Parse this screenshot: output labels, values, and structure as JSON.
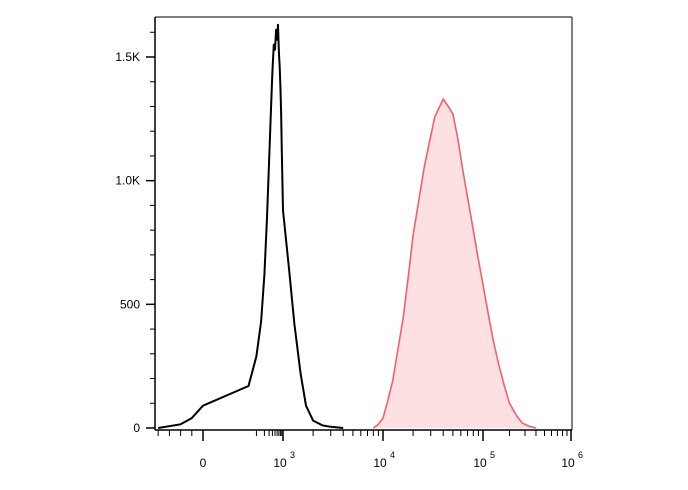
{
  "chart_data": {
    "type": "histogram",
    "title": "",
    "xlabel": "",
    "ylabel": "",
    "x_scale": "biexponential",
    "xlim": [
      -500,
      1000000
    ],
    "ylim": [
      0,
      1650
    ],
    "grid": false,
    "legend": "none",
    "y_ticks": [
      {
        "value": 0,
        "label": "0"
      },
      {
        "value": 500,
        "label": "500"
      },
      {
        "value": 1000,
        "label": "1.0K"
      },
      {
        "value": 1500,
        "label": "1.5K"
      }
    ],
    "x_ticks": [
      {
        "value": 0,
        "base": "0",
        "exp": ""
      },
      {
        "value": 1000,
        "base": "10",
        "exp": "3"
      },
      {
        "value": 10000,
        "base": "10",
        "exp": "4"
      },
      {
        "value": 100000,
        "base": "10",
        "exp": "5"
      },
      {
        "value": 1000000,
        "base": "10",
        "exp": "6"
      }
    ],
    "series": [
      {
        "color": "#000000",
        "fill": "none",
        "x": [
          -400,
          -200,
          -100,
          0,
          50,
          100,
          150,
          200,
          250,
          300,
          350,
          400,
          450,
          500,
          550,
          600,
          650,
          700,
          750,
          800,
          850,
          900,
          1000,
          1150,
          1300,
          1500,
          1700,
          2000,
          2500,
          3000,
          4000
        ],
        "y": [
          0,
          15,
          40,
          90,
          170,
          290,
          430,
          620,
          850,
          1080,
          1280,
          1440,
          1550,
          1530,
          1610,
          1570,
          1630,
          1520,
          1460,
          1380,
          1280,
          1120,
          880,
          640,
          420,
          220,
          90,
          30,
          10,
          5,
          0
        ]
      },
      {
        "color": "#f0606e",
        "fill": "#fde0e2",
        "x": [
          8000,
          9000,
          10000,
          11000,
          12500,
          14000,
          16000,
          18000,
          20000,
          23000,
          26000,
          30000,
          33000,
          36000,
          40000,
          45000,
          50000,
          56000,
          63000,
          71000,
          80000,
          90000,
          100000,
          115000,
          130000,
          150000,
          175000,
          200000,
          240000,
          280000,
          330000,
          400000
        ],
        "y": [
          0,
          15,
          40,
          100,
          190,
          310,
          450,
          620,
          780,
          930,
          1060,
          1180,
          1260,
          1290,
          1330,
          1300,
          1270,
          1170,
          1040,
          920,
          800,
          680,
          580,
          460,
          360,
          260,
          170,
          100,
          50,
          20,
          8,
          0
        ]
      }
    ]
  }
}
